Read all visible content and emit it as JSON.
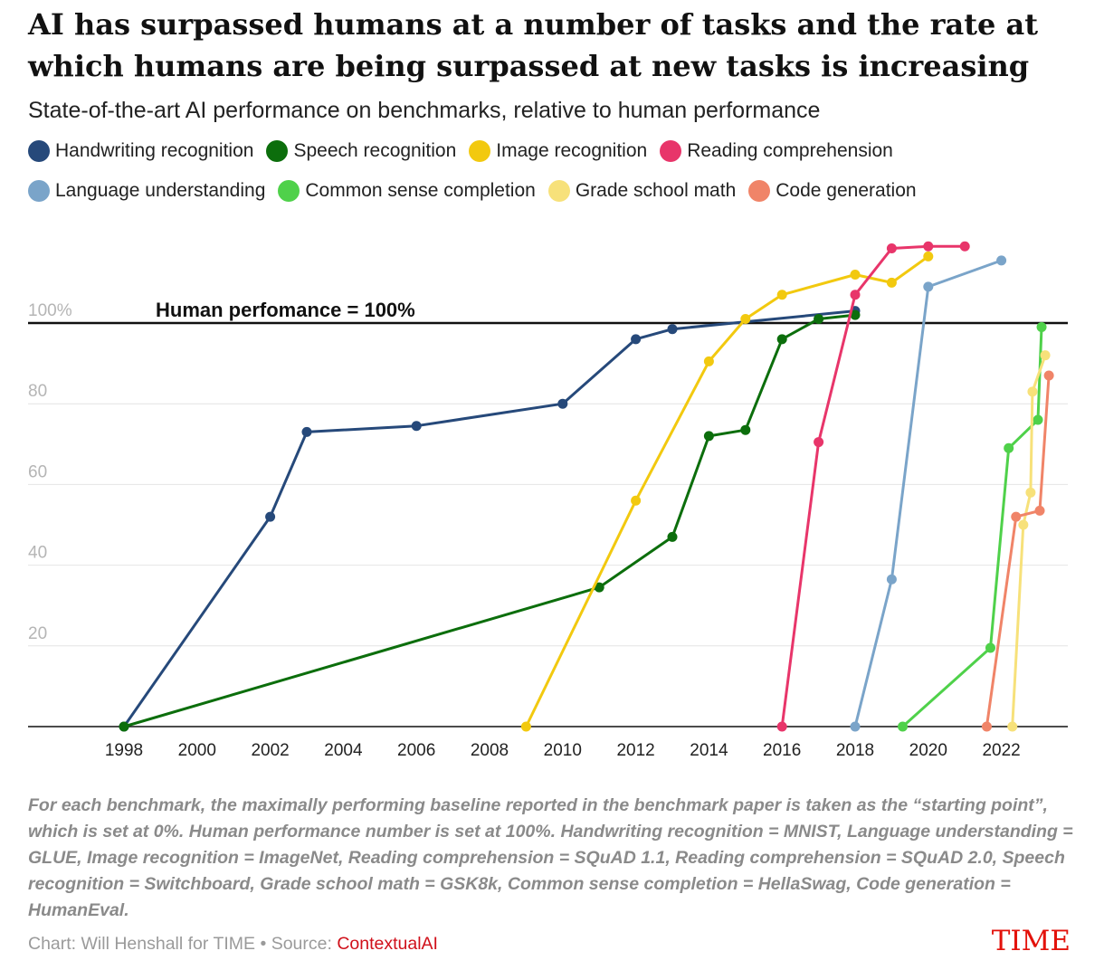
{
  "chart_data": {
    "type": "line",
    "title": "AI has surpassed humans at a number of tasks and the rate at which humans are being surpassed at new tasks is increasing",
    "subtitle": "State-of-the-art AI performance on benchmarks, relative to human performance",
    "xlabel": "",
    "ylabel": "",
    "xlim": [
      1996,
      2024
    ],
    "ylim": [
      0,
      118
    ],
    "x_ticks": [
      "1998",
      "2000",
      "2002",
      "2004",
      "2006",
      "2008",
      "2010",
      "2012",
      "2014",
      "2016",
      "2018",
      "2020",
      "2022"
    ],
    "y_ticks": [
      {
        "value": 20,
        "label": "20"
      },
      {
        "value": 40,
        "label": "40"
      },
      {
        "value": 60,
        "label": "60"
      },
      {
        "value": 80,
        "label": "80"
      },
      {
        "value": 100,
        "label": "100%"
      }
    ],
    "reference_line": {
      "value": 100,
      "label": "Human perfomance = 100%"
    },
    "legend_position": "top",
    "series": [
      {
        "name": "Handwriting recognition",
        "color": "#26497a",
        "points": [
          [
            1998,
            0
          ],
          [
            2002,
            52
          ],
          [
            2003,
            73
          ],
          [
            2006,
            74.5
          ],
          [
            2010,
            80
          ],
          [
            2012,
            96
          ],
          [
            2013,
            98.5
          ],
          [
            2018,
            103
          ]
        ]
      },
      {
        "name": "Speech recognition",
        "color": "#0c6e0c",
        "points": [
          [
            1998,
            0
          ],
          [
            2011,
            34.5
          ],
          [
            2013,
            47
          ],
          [
            2014,
            72
          ],
          [
            2015,
            73.5
          ],
          [
            2016,
            96
          ],
          [
            2017,
            101
          ],
          [
            2018,
            102
          ]
        ]
      },
      {
        "name": "Image recognition",
        "color": "#f2c90f",
        "points": [
          [
            2009,
            0
          ],
          [
            2012,
            56
          ],
          [
            2014,
            90.5
          ],
          [
            2015,
            101
          ],
          [
            2016,
            107
          ],
          [
            2018,
            112
          ],
          [
            2019,
            110
          ],
          [
            2020,
            116.5
          ]
        ]
      },
      {
        "name": "Reading comprehension",
        "color": "#e8356a",
        "points": [
          [
            2016,
            0
          ],
          [
            2017,
            70.5
          ],
          [
            2018,
            107
          ],
          [
            2019,
            118.5
          ],
          [
            2020,
            119
          ],
          [
            2021,
            119
          ]
        ]
      },
      {
        "name": "Language understanding",
        "color": "#7aa4c9",
        "points": [
          [
            2018,
            0
          ],
          [
            2019,
            36.5
          ],
          [
            2020,
            109
          ],
          [
            2022,
            115.5
          ]
        ]
      },
      {
        "name": "Common sense completion",
        "color": "#4fd14a",
        "points": [
          [
            2019.3,
            0
          ],
          [
            2021.7,
            19.5
          ],
          [
            2022.2,
            69
          ],
          [
            2023,
            76
          ],
          [
            2023.1,
            99
          ]
        ]
      },
      {
        "name": "Grade school math",
        "color": "#f7e17a",
        "points": [
          [
            2022.3,
            0
          ],
          [
            2022.6,
            50
          ],
          [
            2022.8,
            58
          ],
          [
            2022.85,
            83
          ],
          [
            2023.2,
            92
          ]
        ]
      },
      {
        "name": "Code generation",
        "color": "#f08468",
        "points": [
          [
            2021.6,
            0
          ],
          [
            2022.4,
            52
          ],
          [
            2023.05,
            53.5
          ],
          [
            2023.3,
            87
          ]
        ]
      }
    ]
  },
  "note": "For each benchmark, the maximally performing baseline reported in the benchmark paper is taken as the “starting point”, which is set at 0%. Human performance number is set at 100%. Handwriting recognition = MNIST, Language understanding = GLUE, Image recognition = ImageNet, Reading comprehension = SQuAD 1.1, Reading comprehension = SQuAD 2.0, Speech recognition = Switchboard, Grade school math = GSK8k, Common sense completion = HellaSwag, Code generation = HumanEval.",
  "credit": {
    "prefix": "Chart: Will Henshall for TIME • Source: ",
    "source": "ContextualAI"
  },
  "logo": "TIME"
}
